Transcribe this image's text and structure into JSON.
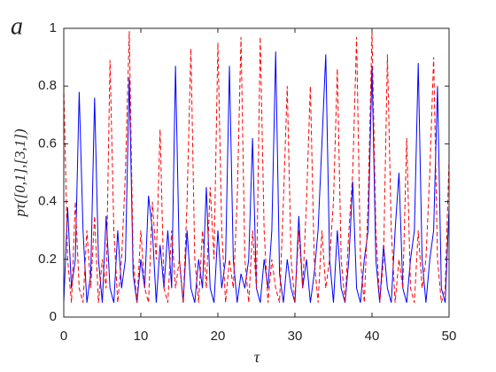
{
  "chart_data": {
    "type": "line",
    "panel_label": "a",
    "x_label": "τ",
    "y_label": "pτ([0,1],[3,1])",
    "x": [
      0,
      0.5,
      1,
      1.5,
      2,
      2.5,
      3,
      3.5,
      4,
      4.5,
      5,
      5.5,
      6,
      6.5,
      7,
      7.5,
      8,
      8.5,
      9,
      9.5,
      10,
      10.5,
      11,
      11.5,
      12,
      12.5,
      13,
      13.5,
      14,
      14.5,
      15,
      15.5,
      16,
      16.5,
      17,
      17.5,
      18,
      18.5,
      19,
      19.5,
      20,
      20.5,
      21,
      21.5,
      22,
      22.5,
      23,
      23.5,
      24,
      24.5,
      25,
      25.5,
      26,
      26.5,
      27,
      27.5,
      28,
      28.5,
      29,
      29.5,
      30,
      30.5,
      31,
      31.5,
      32,
      32.5,
      33,
      33.5,
      34,
      34.5,
      35,
      35.5,
      36,
      36.5,
      37,
      37.5,
      38,
      38.5,
      39,
      39.5,
      40,
      40.5,
      41,
      41.5,
      42,
      42.5,
      43,
      43.5,
      44,
      44.5,
      45,
      45.5,
      46,
      46.5,
      47,
      47.5,
      48,
      48.5,
      49,
      49.5,
      50
    ],
    "series": [
      {
        "color": "#0000ff",
        "linestyle": "solid",
        "values": [
          0.05,
          0.38,
          0.1,
          0.2,
          0.78,
          0.3,
          0.05,
          0.15,
          0.76,
          0.2,
          0.05,
          0.35,
          0.1,
          0.05,
          0.3,
          0.1,
          0.2,
          0.83,
          0.15,
          0.05,
          0.2,
          0.1,
          0.42,
          0.3,
          0.05,
          0.25,
          0.1,
          0.3,
          0.1,
          0.87,
          0.2,
          0.05,
          0.3,
          0.1,
          0.05,
          0.2,
          0.1,
          0.45,
          0.1,
          0.05,
          0.3,
          0.1,
          0.2,
          0.87,
          0.2,
          0.05,
          0.15,
          0.1,
          0.2,
          0.62,
          0.1,
          0.05,
          0.2,
          0.1,
          0.3,
          0.92,
          0.15,
          0.05,
          0.2,
          0.1,
          0.05,
          0.35,
          0.1,
          0.2,
          0.05,
          0.15,
          0.3,
          0.6,
          0.91,
          0.2,
          0.05,
          0.3,
          0.1,
          0.05,
          0.2,
          0.47,
          0.1,
          0.05,
          0.2,
          0.3,
          0.87,
          0.2,
          0.05,
          0.25,
          0.1,
          0.05,
          0.3,
          0.5,
          0.1,
          0.05,
          0.2,
          0.3,
          0.88,
          0.2,
          0.05,
          0.2,
          0.3,
          0.8,
          0.1,
          0.05,
          0.38
        ]
      },
      {
        "color": "#ff0000",
        "linestyle": "dashed",
        "values": [
          0.8,
          0.2,
          0.05,
          0.4,
          0.1,
          0.05,
          0.3,
          0.1,
          0.35,
          0.05,
          0.2,
          0.1,
          0.89,
          0.3,
          0.05,
          0.2,
          0.5,
          0.99,
          0.2,
          0.05,
          0.3,
          0.1,
          0.05,
          0.4,
          0.2,
          0.65,
          0.1,
          0.05,
          0.3,
          0.1,
          0.2,
          0.05,
          0.4,
          0.93,
          0.2,
          0.05,
          0.3,
          0.1,
          0.45,
          0.2,
          0.95,
          0.3,
          0.05,
          0.2,
          0.1,
          0.4,
          0.97,
          0.2,
          0.05,
          0.3,
          0.1,
          0.97,
          0.3,
          0.05,
          0.2,
          0.1,
          0.05,
          0.4,
          0.8,
          0.2,
          0.05,
          0.3,
          0.1,
          0.4,
          0.8,
          0.2,
          0.05,
          0.3,
          0.1,
          0.2,
          0.4,
          0.86,
          0.2,
          0.05,
          0.3,
          0.5,
          0.97,
          0.2,
          0.05,
          0.4,
          0.99,
          0.3,
          0.05,
          0.2,
          0.91,
          0.3,
          0.05,
          0.2,
          0.1,
          0.62,
          0.1,
          0.05,
          0.3,
          0.1,
          0.2,
          0.5,
          0.9,
          0.2,
          0.05,
          0.1,
          0.55
        ]
      }
    ],
    "xlim": [
      0,
      50
    ],
    "xticks": [
      0,
      10,
      20,
      30,
      40,
      50
    ],
    "ylim": [
      0,
      1
    ],
    "yticks": [
      0,
      0.2,
      0.4,
      0.6,
      0.8,
      1
    ],
    "grid": false
  }
}
